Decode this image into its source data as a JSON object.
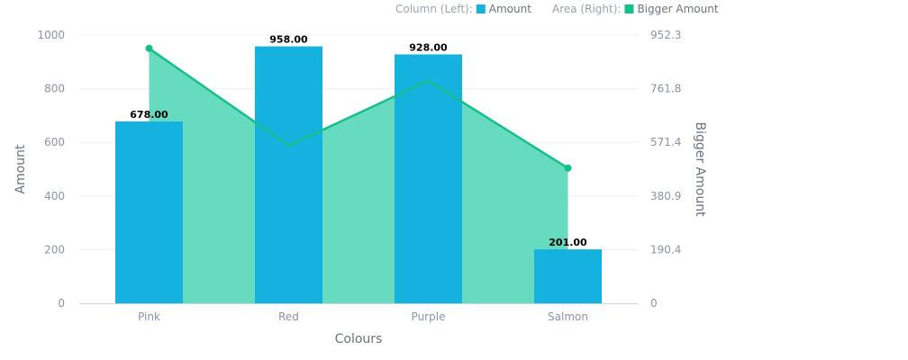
{
  "chart_data": {
    "type": "bar",
    "categories": [
      "Pink",
      "Red",
      "Purple",
      "Salmon"
    ],
    "xlabel": "Colours",
    "legend_position": "top-right",
    "grid": true,
    "y_left": {
      "label": "Amount",
      "range": [
        0,
        1000
      ],
      "ticks": [
        "0",
        "200",
        "400",
        "600",
        "800",
        "1000"
      ]
    },
    "y_right": {
      "label": "Bigger Amount",
      "range": [
        0,
        952.3
      ],
      "ticks": [
        "0",
        "190.4",
        "380.9",
        "571.4",
        "761.8",
        "952.3"
      ]
    },
    "series": [
      {
        "name": "Amount",
        "type": "bar",
        "axis": "left",
        "legend_prefix": "Column (Left):",
        "color": "#15b2e0",
        "values": [
          678,
          958,
          928,
          201
        ],
        "labels": [
          "678.00",
          "958.00",
          "928.00",
          "201.00"
        ]
      },
      {
        "name": "Bigger Amount",
        "type": "area",
        "axis": "right",
        "legend_prefix": "Area (Right):",
        "color": "#14c08a",
        "fill": "#66dbbf",
        "values": [
          905,
          560,
          790,
          480
        ]
      }
    ]
  }
}
